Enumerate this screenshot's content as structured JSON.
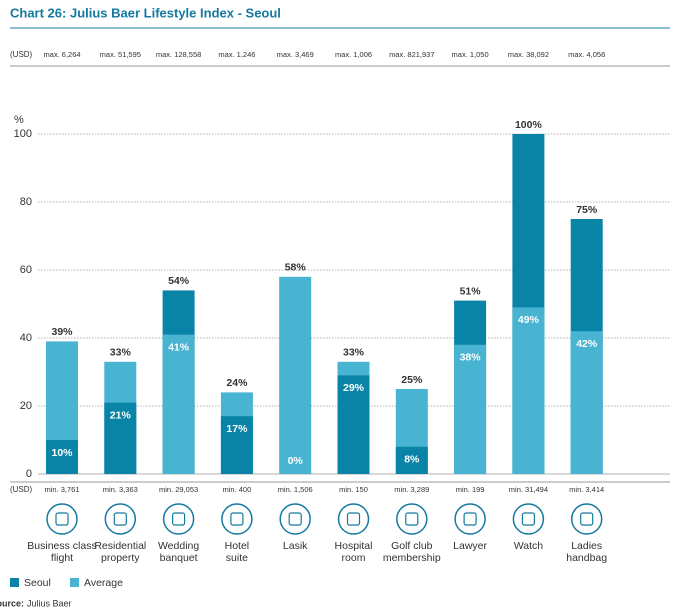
{
  "chart_data": {
    "type": "bar",
    "title": "Chart 26: Julius Baer Lifestyle Index - Seoul",
    "y_label": "%",
    "currency_label": "(USD)",
    "categories": [
      "Business class\nflight",
      "Residential\nproperty",
      "Wedding\nbanquet",
      "Hotel\nsuite",
      "Lasik",
      "Hospital\nroom",
      "Golf club\nmembership",
      "Lawyer",
      "Watch",
      "Ladies\nhandbag"
    ],
    "max_labels": [
      "max. 6,264",
      "max. 51,595",
      "max. 128,558",
      "max. 1,246",
      "max. 3,469",
      "max. 1,006",
      "max. 821,937",
      "max. 1,050",
      "max. 38,092",
      "max. 4,056"
    ],
    "min_labels": [
      "min. 3,761",
      "min. 3,363",
      "min. 29,053",
      "min. 400",
      "min. 1,506",
      "min. 150",
      "min. 3,289",
      "min. 199",
      "min. 31,494",
      "min. 3,414"
    ],
    "series": [
      {
        "name": "Seoul",
        "color": "#0a84a6",
        "values": [
          10,
          21,
          54,
          17,
          0,
          29,
          8,
          51,
          100,
          75
        ],
        "value_labels": [
          "10%",
          "21%",
          "54%",
          "17%",
          "0%",
          "29%",
          "8%",
          "51%",
          "100%",
          "75%"
        ]
      },
      {
        "name": "Average",
        "color": "#49b3d2",
        "values": [
          39,
          33,
          41,
          24,
          58,
          33,
          25,
          38,
          49,
          42
        ],
        "value_labels": [
          "39%",
          "33%",
          "41%",
          "24%",
          "58%",
          "33%",
          "25%",
          "38%",
          "49%",
          "42%"
        ]
      }
    ],
    "ylim": [
      0,
      100
    ],
    "yticks": [
      0,
      20,
      40,
      60,
      80,
      100
    ],
    "grid": true,
    "source_label": "Source:",
    "source": "Julius Baer"
  }
}
